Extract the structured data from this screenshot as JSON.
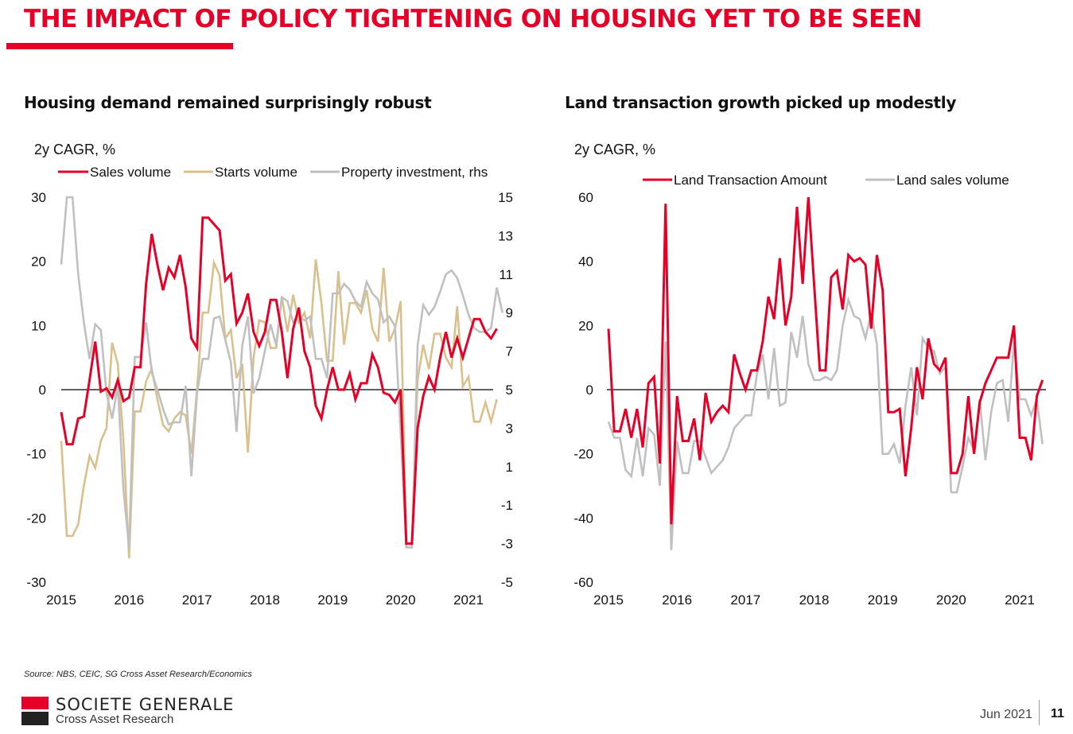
{
  "header": {
    "title": "THE IMPACT OF POLICY TIGHTENING ON HOUSING YET TO BE SEEN"
  },
  "footer": {
    "source": "Source: NBS, CEIC, SG Cross Asset Research/Economics",
    "brand": "SOCIETE GENERALE",
    "brand_sub": "Cross Asset Research",
    "date": "Jun 2021",
    "page": "11"
  },
  "colors": {
    "brand_red": "#e60028",
    "sales": "#e60028",
    "starts": "#d9c08c",
    "investment": "#c0c0c0",
    "land_amount": "#e60028",
    "land_volume": "#c0c0c0"
  },
  "chart_data": [
    {
      "type": "line",
      "title": "Housing demand remained surprisingly robust",
      "ylabel": "2y CAGR, %",
      "ylim": [
        -30,
        30
      ],
      "yticks": [
        "30",
        "20",
        "10",
        "0",
        "-10",
        "-20",
        "-30"
      ],
      "y2lim": [
        -5,
        15
      ],
      "y2ticks": [
        "15",
        "13",
        "11",
        "9",
        "7",
        "5",
        "3",
        "1",
        "-1",
        "-3",
        "-5"
      ],
      "xlim": [
        2015,
        2021.42
      ],
      "xticks": [
        "2015",
        "2016",
        "2017",
        "2018",
        "2019",
        "2020",
        "2021"
      ],
      "legend": "top",
      "series": [
        {
          "name": "Sales volume",
          "axis": "left",
          "color": "#e60028",
          "start": 2015,
          "step_months": 1,
          "values": [
            -3.5,
            -8.5,
            -8.5,
            -4.5,
            -4.2,
            1.5,
            7.5,
            -0.3,
            0.2,
            -1.2,
            1.5,
            -1.8,
            -1.2,
            3.5,
            3.5,
            16.5,
            24.3,
            19.5,
            15.5,
            19,
            17.5,
            21,
            16,
            8,
            6.5,
            26.8,
            26.8,
            25.8,
            24.8,
            17,
            18,
            10.3,
            12,
            15,
            9,
            6.8,
            9,
            14,
            14,
            9,
            1.8,
            9.5,
            12.8,
            6,
            3.5,
            -2.5,
            -4.5,
            0,
            3.5,
            0,
            0,
            2.5,
            -1.5,
            1,
            1,
            5.5,
            3.5,
            -0.5,
            -0.8,
            -2,
            0,
            -24,
            -24,
            -6,
            -1,
            2,
            0,
            5,
            9,
            5,
            8,
            5,
            8,
            11,
            11,
            9,
            8,
            9.5
          ]
        },
        {
          "name": "Starts volume",
          "axis": "left",
          "color": "#d9c08c",
          "start": 2015,
          "step_months": 1,
          "values": [
            -8,
            -22.8,
            -22.8,
            -21,
            -15,
            -10.3,
            -12.2,
            -8,
            -6,
            7.3,
            4,
            -8,
            -26.3,
            -3.4,
            -3.4,
            1.3,
            3.3,
            -1.5,
            -5.5,
            -6.5,
            -4.5,
            -3.5,
            -4,
            -10,
            0,
            12,
            12,
            19.8,
            17.8,
            8,
            9.3,
            1.8,
            4,
            -9.8,
            5,
            10.8,
            10.5,
            6.5,
            6.5,
            14.5,
            9,
            14.8,
            10.5,
            12,
            8,
            20.3,
            13.5,
            4.5,
            4.5,
            18.5,
            7,
            13.5,
            13.5,
            12,
            15.5,
            9.5,
            7.5,
            19,
            7.5,
            9.5,
            13.8,
            -24,
            -24,
            1.5,
            7,
            3.2,
            8.7,
            8.7,
            5,
            3.5,
            13,
            0.5,
            2,
            -5,
            -5,
            -2,
            -5,
            -1.5
          ]
        },
        {
          "name": "Property investment, rhs",
          "axis": "right",
          "color": "#c0c0c0",
          "start": 2015,
          "step_months": 1,
          "values": [
            11.5,
            15,
            15,
            11,
            8.5,
            6.6,
            8.4,
            8.1,
            4.8,
            3.5,
            5.2,
            -0.2,
            -3.2,
            6.7,
            6.7,
            8.5,
            5.9,
            5,
            4,
            3.2,
            3.3,
            3.3,
            5.2,
            0.5,
            4.8,
            6.6,
            6.6,
            8.7,
            8.8,
            7.6,
            6.4,
            2.8,
            7.3,
            8.8,
            4.8,
            5.6,
            7,
            8.4,
            7.3,
            9.8,
            9.6,
            8.5,
            8.8,
            8.6,
            8.8,
            6.6,
            6.6,
            5.6,
            10,
            10,
            10.5,
            10.2,
            9.6,
            9.3,
            10.6,
            10,
            9.7,
            8.5,
            8.8,
            8.3,
            2.8,
            -3.2,
            -3.2,
            7.3,
            9.4,
            8.9,
            9.3,
            10.1,
            11,
            11.2,
            10.8,
            9.9,
            8.9,
            8.2,
            8,
            8,
            8.2,
            10.3,
            9
          ]
        }
      ]
    },
    {
      "type": "line",
      "title": "Land transaction growth picked up modestly",
      "ylabel": "2y CAGR, %",
      "ylim": [
        -60,
        60
      ],
      "yticks": [
        "60",
        "40",
        "20",
        "0",
        "-20",
        "-40",
        "-60"
      ],
      "xlim": [
        2015,
        2021.42
      ],
      "xticks": [
        "2015",
        "2016",
        "2017",
        "2018",
        "2019",
        "2020",
        "2021"
      ],
      "legend": "top",
      "series": [
        {
          "name": "Land Transaction Amount",
          "color": "#e60028",
          "start": 2015,
          "step_months": 1,
          "values": [
            19,
            -13,
            -13,
            -6,
            -15,
            -6,
            -18,
            2,
            4,
            -23,
            58,
            -42,
            -2,
            -16,
            -16,
            -9,
            -22,
            -1,
            -10,
            -7,
            -5,
            -7,
            11,
            5,
            0,
            6,
            6,
            15,
            29,
            22,
            41,
            20,
            29,
            57,
            33,
            60,
            33,
            6,
            6,
            35,
            37,
            25,
            42,
            40,
            41,
            39,
            19,
            42,
            31,
            -7,
            -7,
            -6,
            -27,
            -12,
            7,
            -3,
            16,
            8,
            6,
            10,
            -26,
            -26,
            -20,
            -2,
            -20,
            -4,
            2,
            6,
            10,
            10,
            10,
            20,
            -15,
            -15,
            -22,
            -2,
            3
          ]
        },
        {
          "name": "Land sales volume",
          "color": "#c0c0c0",
          "start": 2015,
          "step_months": 1,
          "values": [
            -10,
            -15,
            -15,
            -25,
            -27,
            -15,
            -27,
            -12,
            -14,
            -30,
            15,
            -50,
            -16,
            -26,
            -26,
            -16,
            -16,
            -21,
            -26,
            -24,
            -22,
            -18,
            -12,
            -10,
            -8,
            -8,
            5,
            11,
            -3,
            13,
            -5,
            -4,
            18,
            10,
            23,
            8,
            3,
            3,
            4,
            3,
            6,
            20,
            28,
            23,
            22,
            16,
            24,
            14,
            -20,
            -20,
            -17,
            -23,
            -5,
            7,
            -8,
            16,
            13,
            12,
            5,
            7,
            -32,
            -32,
            -24,
            -15,
            -19,
            -3,
            -22,
            -7,
            2,
            3,
            -10,
            15,
            -3,
            -3,
            -8,
            -3,
            -17
          ]
        }
      ]
    }
  ]
}
